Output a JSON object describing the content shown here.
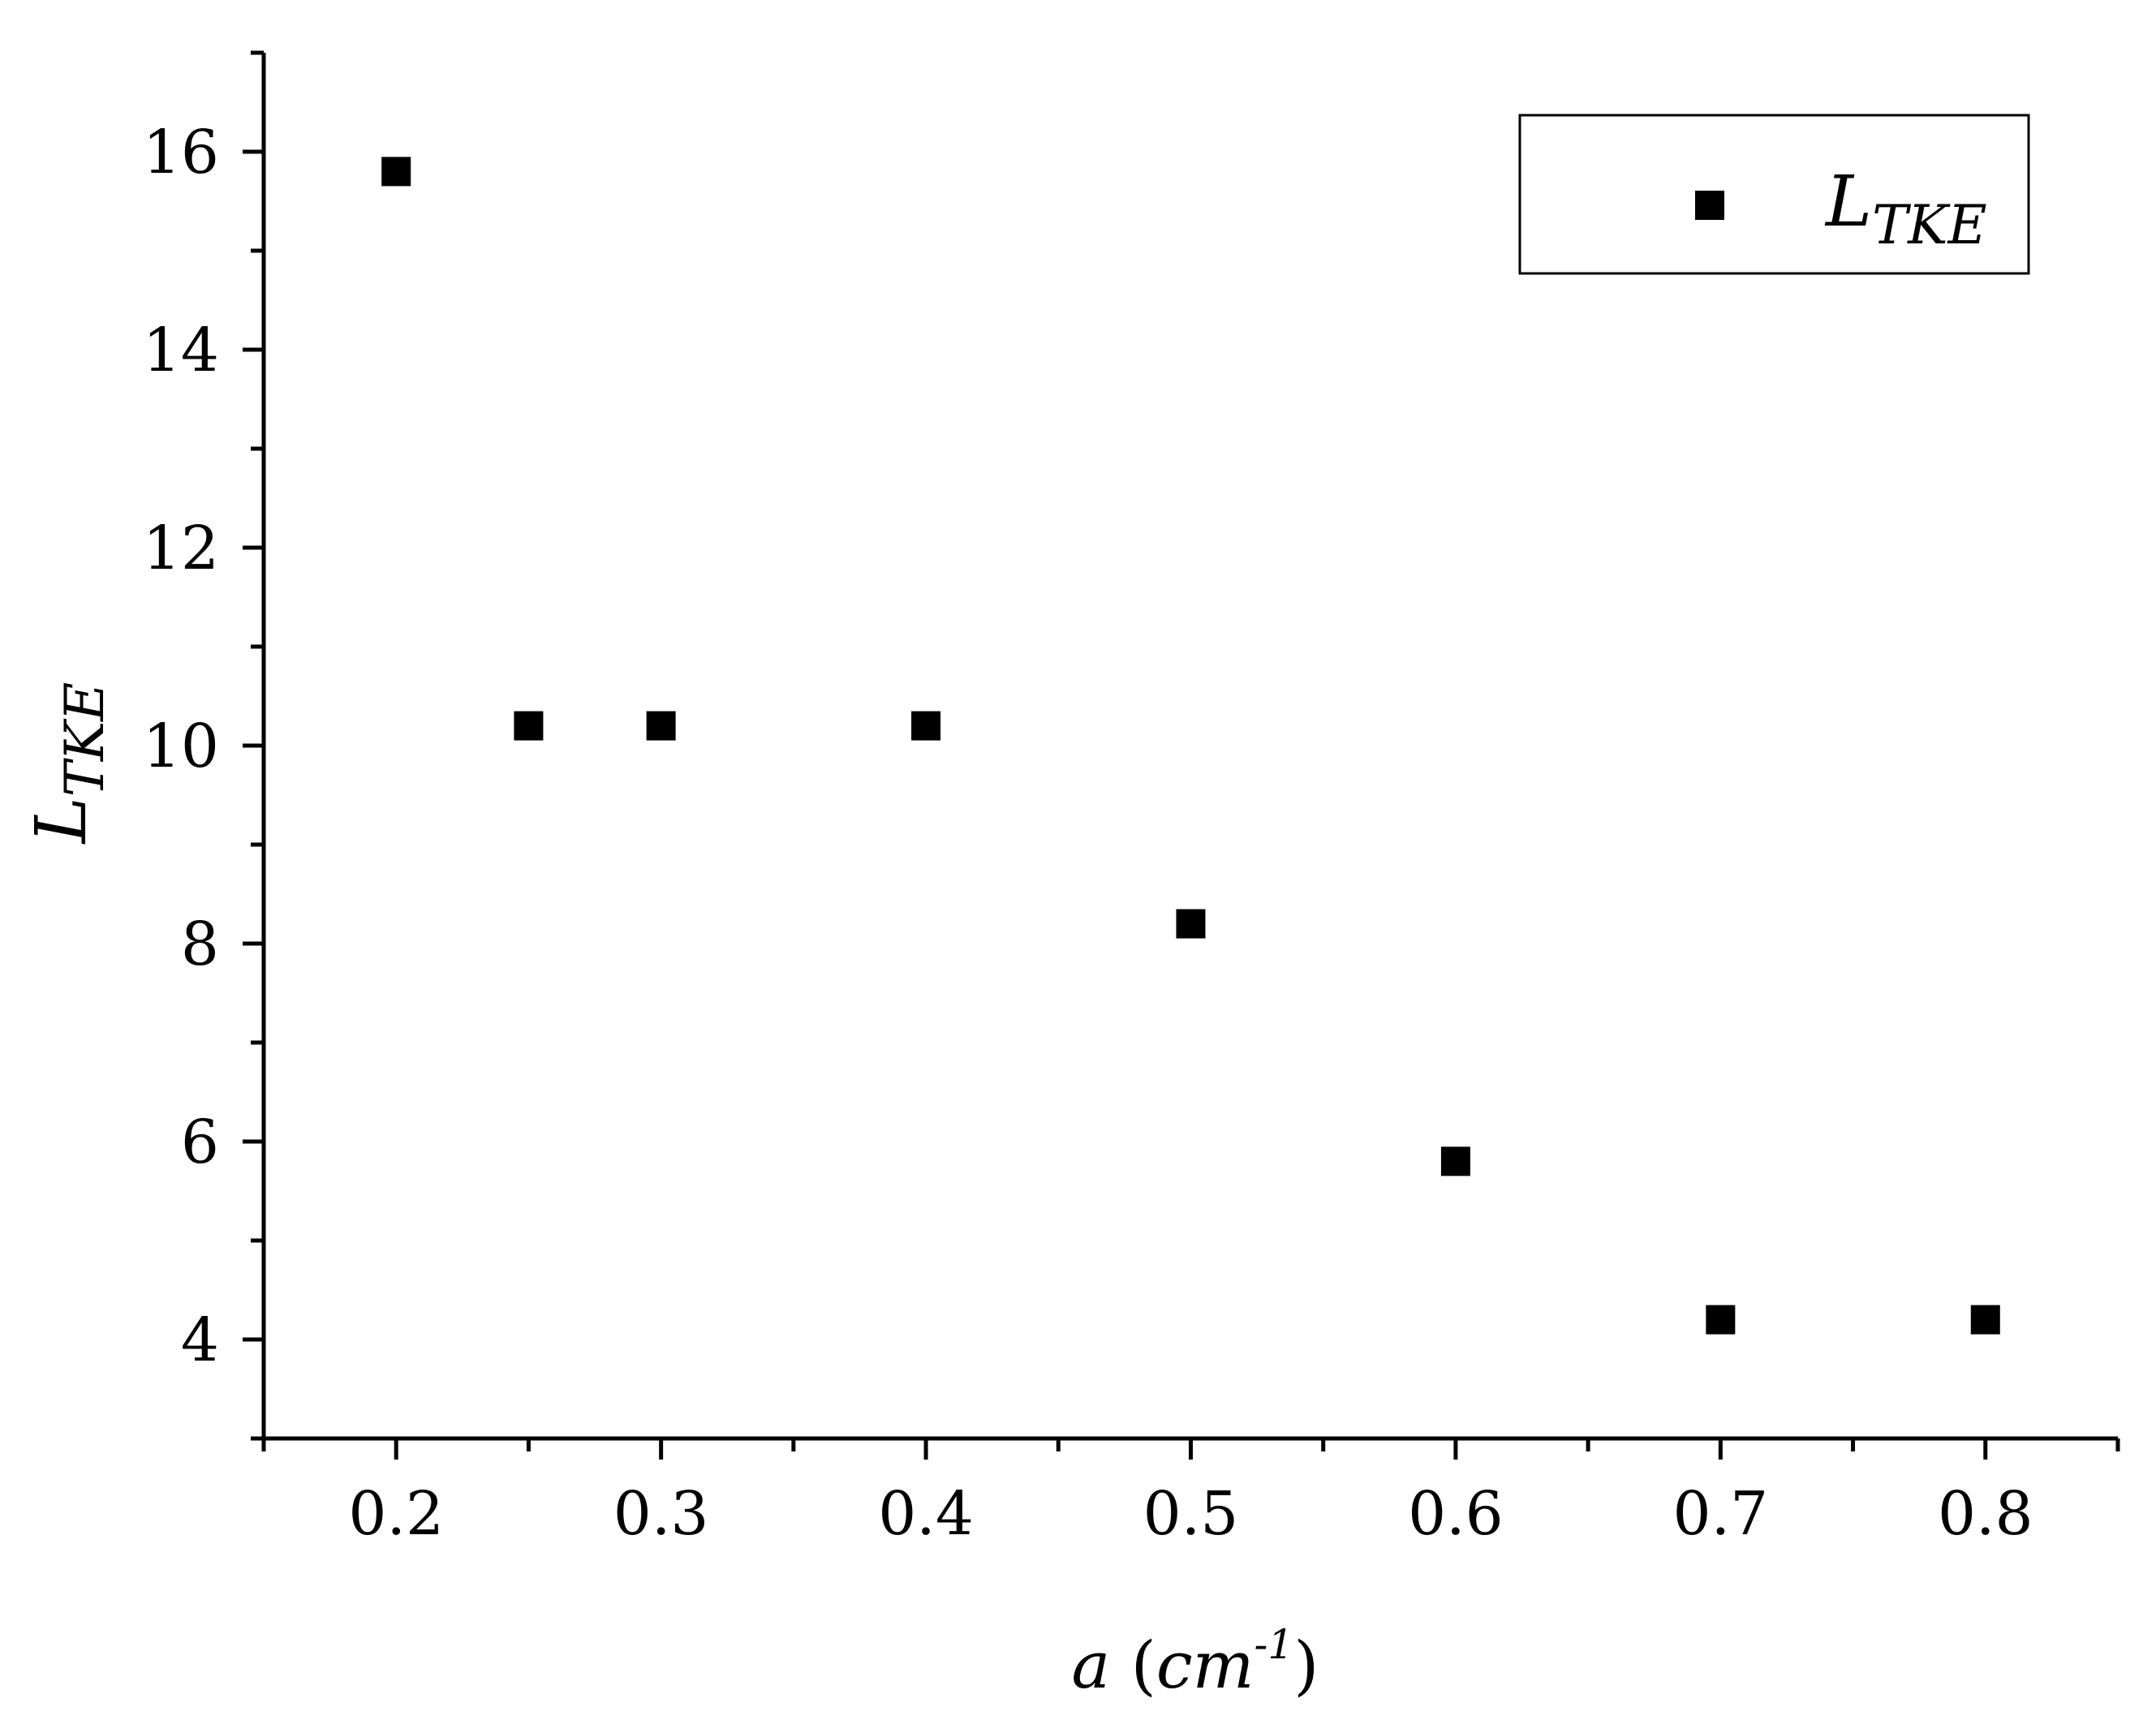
{
  "chart_data": {
    "type": "scatter",
    "x": [
      0.2,
      0.25,
      0.3,
      0.4,
      0.5,
      0.6,
      0.7,
      0.8
    ],
    "series": [
      {
        "name": "L_TKE",
        "values": [
          15.8,
          10.2,
          10.2,
          10.2,
          8.2,
          5.8,
          4.2,
          4.2
        ]
      }
    ],
    "xlim": [
      0.15,
      0.85
    ],
    "ylim": [
      3,
      17
    ],
    "xticks": [
      0.2,
      0.3,
      0.4,
      0.5,
      0.6,
      0.7,
      0.8
    ],
    "xtick_labels": [
      "0.2",
      "0.3",
      "0.4",
      "0.5",
      "0.6",
      "0.7",
      "0.8"
    ],
    "yticks": [
      4,
      6,
      8,
      10,
      12,
      14,
      16
    ],
    "ytick_labels": [
      "4",
      "6",
      "8",
      "10",
      "12",
      "14",
      "16"
    ],
    "xlabel": {
      "var": "a",
      "open": " (",
      "unit": "cm",
      "exp": "-1",
      "close": ")"
    },
    "ylabel": {
      "main": "L",
      "sub": "TKE"
    },
    "legend": {
      "position": "top-right",
      "entries": [
        {
          "main": "L",
          "sub": "TKE"
        }
      ]
    },
    "grid": false,
    "marker": "square",
    "color": "#000000"
  }
}
